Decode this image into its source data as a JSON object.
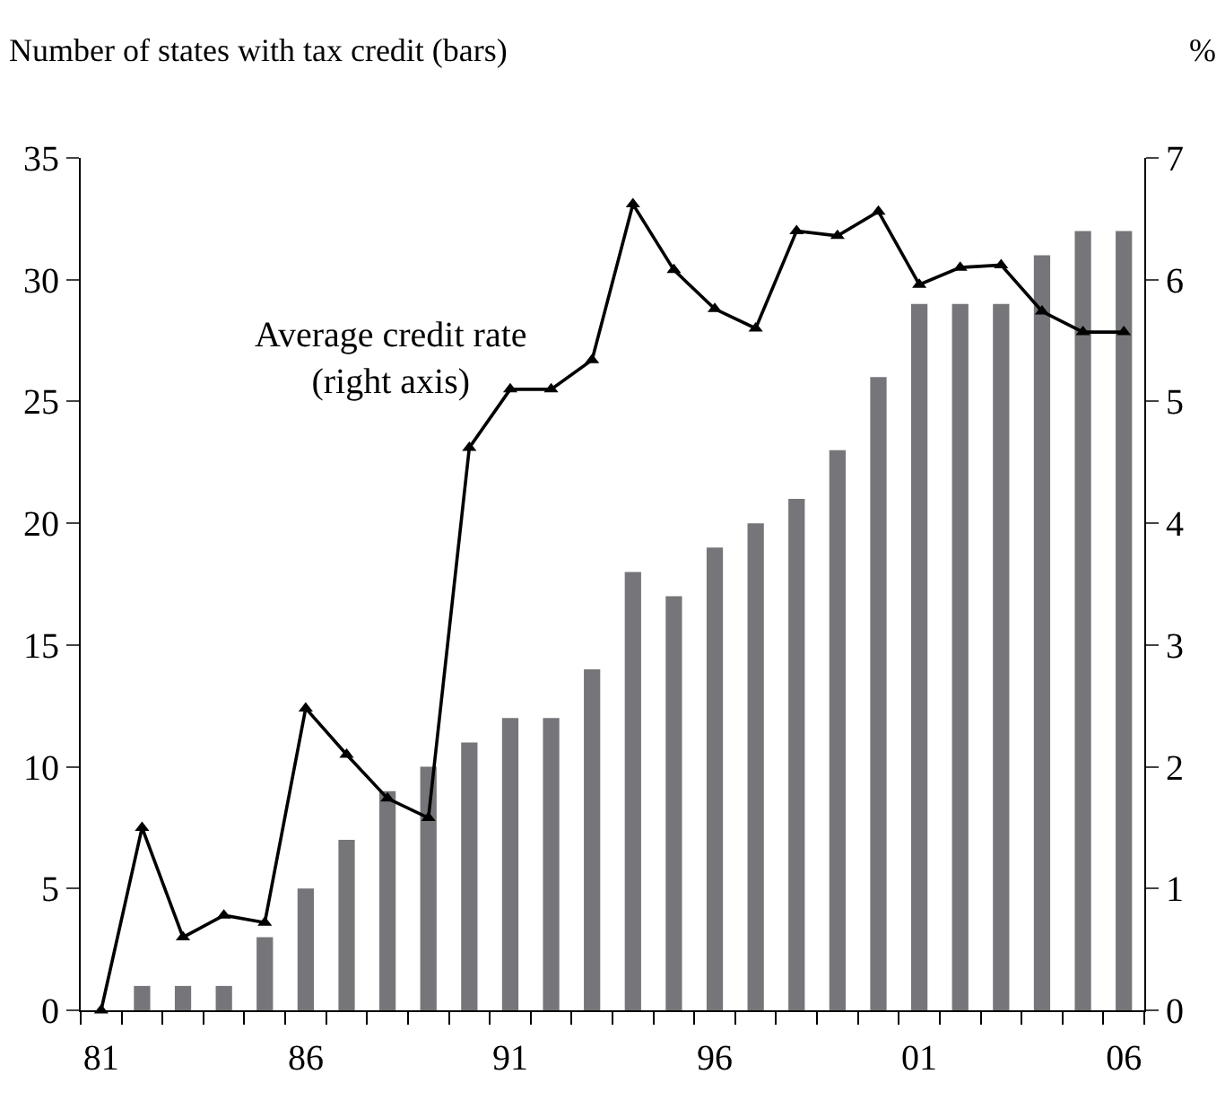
{
  "chart_data": {
    "type": "bar",
    "ylabel": "Number of states with tax credit (bars)",
    "y2label": "%",
    "categories": [
      "81",
      null,
      null,
      null,
      null,
      "86",
      null,
      null,
      null,
      null,
      "91",
      null,
      null,
      null,
      null,
      "96",
      null,
      null,
      null,
      null,
      "01",
      null,
      null,
      null,
      null,
      "06"
    ],
    "series": [
      {
        "color": "#76767a",
        "values": [
          0,
          1,
          1,
          1,
          3,
          5,
          7,
          9,
          10,
          11,
          12,
          12,
          14,
          18,
          17,
          19,
          20,
          21,
          23,
          26,
          29,
          29,
          29,
          31,
          32,
          32
        ]
      },
      {
        "type": "line",
        "axis": "y2",
        "color": "#000000",
        "marker": "triangle",
        "values": [
          0,
          1.5,
          0.6,
          0.78,
          0.72,
          2.48,
          2.1,
          1.74,
          1.58,
          4.62,
          5.1,
          5.1,
          5.34,
          6.62,
          6.08,
          5.76,
          5.6,
          6.4,
          6.36,
          6.56,
          5.96,
          6.1,
          6.12,
          5.74,
          5.57,
          5.57
        ]
      }
    ],
    "ylim": [
      0,
      35
    ],
    "yticks": [
      0,
      5,
      10,
      15,
      20,
      25,
      30,
      35
    ],
    "y2lim": [
      0,
      7
    ],
    "y2ticks": [
      0,
      1,
      2,
      3,
      4,
      5,
      6,
      7
    ],
    "annotations": [
      "Average credit rate\n(right axis)"
    ],
    "legend": false
  }
}
